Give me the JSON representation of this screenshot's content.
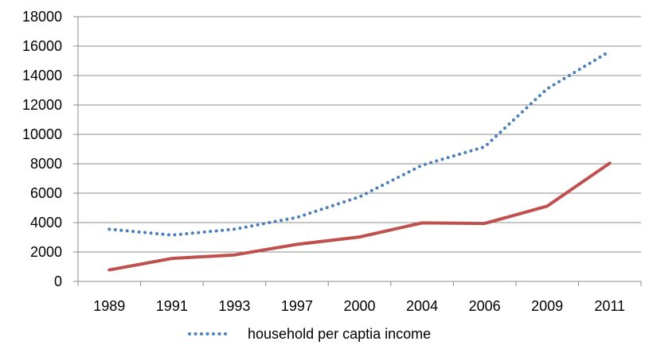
{
  "chart_data": {
    "type": "line",
    "categories": [
      "1989",
      "1991",
      "1993",
      "1997",
      "2000",
      "2004",
      "2006",
      "2009",
      "2011"
    ],
    "series": [
      {
        "name": "household per captia income",
        "values": [
          3550,
          3150,
          3550,
          4350,
          5750,
          7900,
          9150,
          13100,
          15650
        ],
        "color": "#4a7ebb",
        "style": "dotted"
      },
      {
        "name": "",
        "values": [
          780,
          1560,
          1800,
          2520,
          3020,
          3980,
          3940,
          5120,
          8040
        ],
        "color": "#c0504d",
        "style": "solid"
      }
    ],
    "ylim": [
      0,
      18000
    ],
    "yticks": [
      0,
      2000,
      4000,
      6000,
      8000,
      10000,
      12000,
      14000,
      16000,
      18000
    ],
    "grid": true,
    "legend_position": "bottom",
    "title": "",
    "xlabel": "",
    "ylabel": ""
  }
}
